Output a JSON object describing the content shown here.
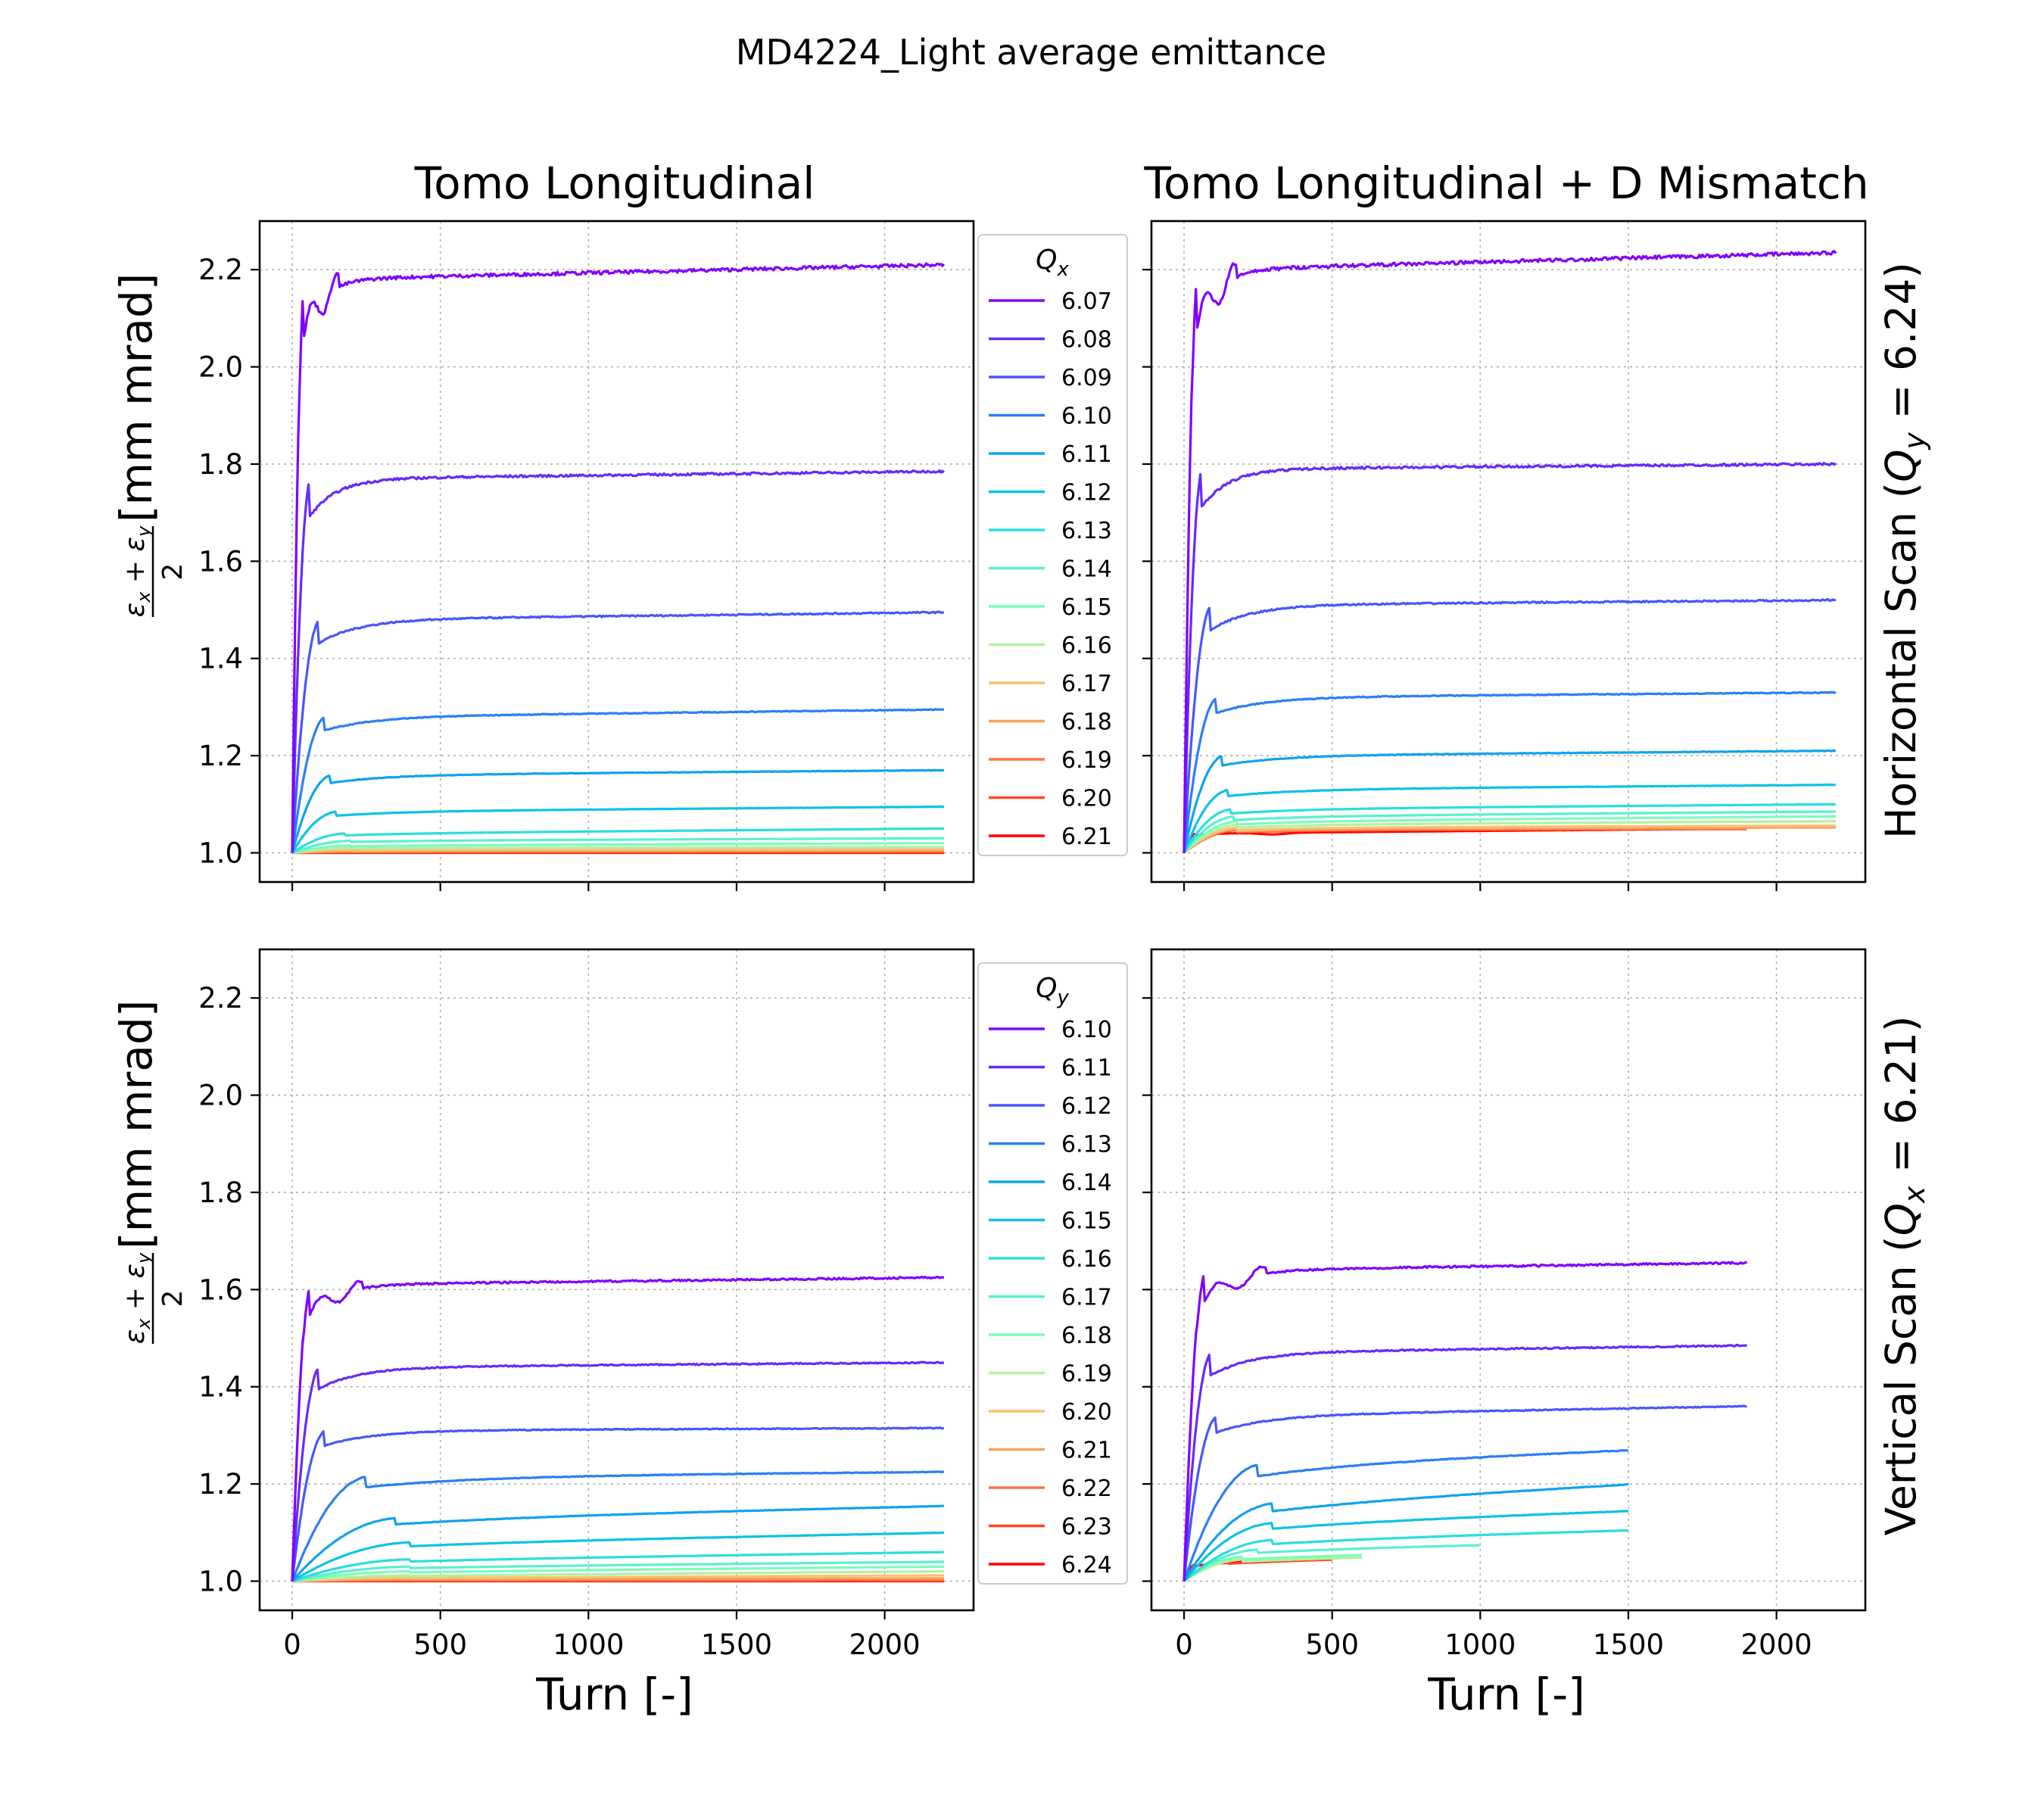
{
  "chart_data": {
    "type": "line",
    "title": "MD4224_Light average emittance",
    "columns": [
      "Tomo Longitudinal",
      "Tomo Longitudinal + D Mismatch"
    ],
    "rows": [
      "Horizontal Scan (Q_y = 6.24)",
      "Vertical Scan (Q_x = 6.21)"
    ],
    "xlabel": "Turn [-]",
    "ylabel": "(ε_x + ε_y) / 2 [mm mrad]",
    "xlim": [
      -110,
      2300
    ],
    "ylim": [
      0.94,
      2.3
    ],
    "xticks": [
      "0",
      "500",
      "1000",
      "1500",
      "2000"
    ],
    "yticks": [
      "1.0",
      "1.2",
      "1.4",
      "1.6",
      "1.8",
      "2.0",
      "2.2"
    ],
    "grid": true,
    "legend_placement": "between columns",
    "legends": [
      {
        "title": "Q_x",
        "entries": [
          "6.07",
          "6.08",
          "6.09",
          "6.10",
          "6.11",
          "6.12",
          "6.13",
          "6.14",
          "6.15",
          "6.16",
          "6.17",
          "6.18",
          "6.19",
          "6.20",
          "6.21"
        ]
      },
      {
        "title": "Q_y",
        "entries": [
          "6.10",
          "6.11",
          "6.12",
          "6.13",
          "6.14",
          "6.15",
          "6.16",
          "6.17",
          "6.18",
          "6.19",
          "6.20",
          "6.21",
          "6.22",
          "6.23",
          "6.24"
        ]
      }
    ],
    "colors": [
      "#8000ff",
      "#6629fe",
      "#4856fc",
      "#2c7ef7",
      "#10a2f0",
      "#0cc2e6",
      "#2adddd",
      "#5af0cf",
      "#7dfcbc",
      "#b2f2a0",
      "#f5c178",
      "#ffa256",
      "#ff7243",
      "#ff4826",
      "#ff0000"
    ],
    "panels": [
      {
        "name": "Tomo Longitudinal - Horizontal Scan",
        "series": [
          {
            "name": "6.07",
            "end": 2200,
            "plateau": [
              2.18,
              2.21
            ],
            "rise": 40,
            "overshoot": true
          },
          {
            "name": "6.08",
            "end": 2200,
            "plateau": [
              1.77,
              1.785
            ],
            "rise": 60
          },
          {
            "name": "6.09",
            "end": 2200,
            "plateau": [
              1.48,
              1.495
            ],
            "rise": 90
          },
          {
            "name": "6.10",
            "end": 2200,
            "plateau": [
              1.28,
              1.295
            ],
            "rise": 110
          },
          {
            "name": "6.11",
            "end": 2200,
            "plateau": [
              1.16,
              1.17
            ],
            "rise": 130
          },
          {
            "name": "6.12",
            "end": 2200,
            "plateau": [
              1.085,
              1.095
            ],
            "rise": 150
          },
          {
            "name": "6.13",
            "end": 2200,
            "plateau": [
              1.04,
              1.05
            ],
            "rise": 180
          },
          {
            "name": "6.14",
            "end": 2200,
            "plateau": [
              1.025,
              1.03
            ],
            "rise": 200
          },
          {
            "name": "6.15",
            "end": 2200,
            "plateau": [
              1.015,
              1.02
            ],
            "rise": 200
          },
          {
            "name": "6.16",
            "end": 2200,
            "plateau": [
              1.01,
              1.012
            ],
            "rise": 200
          },
          {
            "name": "6.17",
            "end": 2200,
            "plateau": [
              1.006,
              1.008
            ],
            "rise": 200
          },
          {
            "name": "6.18",
            "end": 2200,
            "plateau": [
              1.004,
              1.005
            ],
            "rise": 200
          },
          {
            "name": "6.19",
            "end": 2200,
            "plateau": [
              1.002,
              1.003
            ],
            "rise": 200
          },
          {
            "name": "6.20",
            "end": 2200,
            "plateau": [
              1.001,
              1.001
            ],
            "rise": 200
          },
          {
            "name": "6.21",
            "end": 2200,
            "plateau": [
              1.0,
              1.0
            ],
            "rise": 200
          }
        ]
      },
      {
        "name": "Tomo Longitudinal + D Mismatch - Horizontal Scan",
        "series": [
          {
            "name": "6.07",
            "end": 2200,
            "plateau": [
              2.2,
              2.235
            ],
            "rise": 45,
            "overshoot": true
          },
          {
            "name": "6.08",
            "end": 2200,
            "plateau": [
              1.79,
              1.8
            ],
            "rise": 60
          },
          {
            "name": "6.09",
            "end": 2200,
            "plateau": [
              1.51,
              1.52
            ],
            "rise": 90
          },
          {
            "name": "6.10",
            "end": 2200,
            "plateau": [
              1.32,
              1.33
            ],
            "rise": 110
          },
          {
            "name": "6.11",
            "end": 2200,
            "plateau": [
              1.2,
              1.21
            ],
            "rise": 130
          },
          {
            "name": "6.12",
            "end": 2200,
            "plateau": [
              1.13,
              1.14
            ],
            "rise": 150
          },
          {
            "name": "6.13",
            "end": 2200,
            "plateau": [
              1.09,
              1.1
            ],
            "rise": 160
          },
          {
            "name": "6.14",
            "end": 2200,
            "plateau": [
              1.075,
              1.085
            ],
            "rise": 170
          },
          {
            "name": "6.15",
            "end": 2200,
            "plateau": [
              1.065,
              1.075
            ],
            "rise": 180
          },
          {
            "name": "6.16",
            "end": 2200,
            "plateau": [
              1.058,
              1.065
            ],
            "rise": 180
          },
          {
            "name": "6.17",
            "end": 2200,
            "plateau": [
              1.052,
              1.056
            ],
            "rise": 180
          },
          {
            "name": "6.18",
            "end": 2200,
            "plateau": [
              1.05,
              1.052
            ],
            "rise": 180
          },
          {
            "name": "6.19",
            "end": 1900,
            "plateau": [
              1.048,
              1.05
            ],
            "rise": 180
          },
          {
            "name": "6.20",
            "end": 1900,
            "plateau": [
              1.047,
              1.049
            ],
            "rise": 180
          },
          {
            "name": "6.21",
            "end": 1900,
            "plateau": [
              1.04,
              1.05
            ],
            "rise": 40,
            "dip": [
              300,
              1.03
            ]
          }
        ]
      },
      {
        "name": "Tomo Longitudinal - Vertical Scan",
        "series": [
          {
            "name": "6.10",
            "end": 2200,
            "plateau": [
              1.61,
              1.625
            ],
            "rise": 60,
            "overshoot": true
          },
          {
            "name": "6.11",
            "end": 2200,
            "plateau": [
              1.44,
              1.45
            ],
            "rise": 90
          },
          {
            "name": "6.12",
            "end": 2200,
            "plateau": [
              1.31,
              1.315
            ],
            "rise": 110
          },
          {
            "name": "6.13",
            "end": 2200,
            "plateau": [
              1.215,
              1.225
            ],
            "rise": 250
          },
          {
            "name": "6.14",
            "end": 2200,
            "plateau": [
              1.13,
              1.155
            ],
            "rise": 350
          },
          {
            "name": "6.15",
            "end": 2200,
            "plateau": [
              1.08,
              1.1
            ],
            "rise": 400
          },
          {
            "name": "6.16",
            "end": 2200,
            "plateau": [
              1.045,
              1.06
            ],
            "rise": 400
          },
          {
            "name": "6.17",
            "end": 2200,
            "plateau": [
              1.03,
              1.04
            ],
            "rise": 400
          },
          {
            "name": "6.18",
            "end": 2200,
            "plateau": [
              1.02,
              1.03
            ],
            "rise": 400
          },
          {
            "name": "6.19",
            "end": 2200,
            "plateau": [
              1.012,
              1.02
            ],
            "rise": 400
          },
          {
            "name": "6.20",
            "end": 2200,
            "plateau": [
              1.007,
              1.012
            ],
            "rise": 400
          },
          {
            "name": "6.21",
            "end": 2200,
            "plateau": [
              1.004,
              1.006
            ],
            "rise": 400
          },
          {
            "name": "6.22",
            "end": 2200,
            "plateau": [
              1.002,
              1.003
            ],
            "rise": 400
          },
          {
            "name": "6.23",
            "end": 2200,
            "plateau": [
              1.001,
              1.001
            ],
            "rise": 400
          },
          {
            "name": "6.24",
            "end": 2200,
            "plateau": [
              1.0,
              1.0
            ],
            "rise": 400
          }
        ]
      },
      {
        "name": "Tomo Longitudinal + D Mismatch - Vertical Scan",
        "series": [
          {
            "name": "6.10",
            "end": 1900,
            "plateau": [
              1.64,
              1.655
            ],
            "rise": 70,
            "overshoot": true
          },
          {
            "name": "6.11",
            "end": 1900,
            "plateau": [
              1.47,
              1.485
            ],
            "rise": 90
          },
          {
            "name": "6.12",
            "end": 1900,
            "plateau": [
              1.34,
              1.36
            ],
            "rise": 110
          },
          {
            "name": "6.13",
            "end": 1500,
            "plateau": [
              1.24,
              1.27
            ],
            "rise": 250
          },
          {
            "name": "6.14",
            "end": 1500,
            "plateau": [
              1.16,
              1.2
            ],
            "rise": 300
          },
          {
            "name": "6.15",
            "end": 1500,
            "plateau": [
              1.12,
              1.145
            ],
            "rise": 300
          },
          {
            "name": "6.16",
            "end": 1500,
            "plateau": [
              1.085,
              1.105
            ],
            "rise": 300
          },
          {
            "name": "6.17",
            "end": 1000,
            "plateau": [
              1.065,
              1.075
            ],
            "rise": 250
          },
          {
            "name": "6.18",
            "end": 600,
            "plateau": [
              1.05,
              1.055
            ],
            "rise": 200
          },
          {
            "name": "6.19",
            "end": 600,
            "plateau": [
              1.045,
              1.05
            ],
            "rise": 200
          },
          {
            "name": "6.20",
            "end": 600,
            "plateau": [
              1.045,
              1.05
            ],
            "rise": 200
          },
          {
            "name": "6.21",
            "end": 600,
            "plateau": [
              1.045,
              1.05
            ],
            "rise": 200
          },
          {
            "name": "6.22",
            "end": 500,
            "plateau": [
              1.045,
              1.05
            ],
            "rise": 200
          },
          {
            "name": "6.23",
            "end": 500,
            "plateau": [
              1.04,
              1.045
            ],
            "rise": 150
          },
          {
            "name": "6.24",
            "end": 200,
            "plateau": [
              1.035,
              1.04
            ],
            "rise": 40
          }
        ]
      }
    ]
  }
}
